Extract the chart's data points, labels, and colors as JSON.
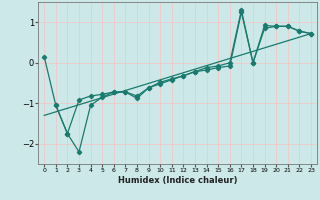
{
  "xlabel": "Humidex (Indice chaleur)",
  "ylabel": "",
  "bg_color": "#cce8e8",
  "grid_color": "#f0c8c8",
  "line_color": "#1a7a6e",
  "xlim": [
    -0.5,
    23.5
  ],
  "ylim": [
    -2.5,
    1.5
  ],
  "xticks": [
    0,
    1,
    2,
    3,
    4,
    5,
    6,
    7,
    8,
    9,
    10,
    11,
    12,
    13,
    14,
    15,
    16,
    17,
    18,
    19,
    20,
    21,
    22,
    23
  ],
  "yticks": [
    -2,
    -1,
    0,
    1
  ],
  "line1_x": [
    0,
    1,
    2,
    3,
    4,
    5,
    6,
    7,
    8,
    9,
    10,
    11,
    12,
    13,
    14,
    15,
    16,
    17,
    18,
    19,
    20,
    21,
    22,
    23
  ],
  "line1_y": [
    0.15,
    -1.05,
    -1.75,
    -0.92,
    -0.82,
    -0.78,
    -0.72,
    -0.72,
    -0.88,
    -0.62,
    -0.52,
    -0.42,
    -0.32,
    -0.22,
    -0.18,
    -0.12,
    -0.08,
    1.25,
    0.0,
    0.92,
    0.9,
    0.9,
    0.78,
    0.72
  ],
  "line2_x": [
    1,
    2,
    3,
    4,
    5,
    6,
    7,
    8,
    9,
    10,
    11,
    12,
    13,
    14,
    15,
    16,
    17,
    18,
    19,
    20,
    21,
    22,
    23
  ],
  "line2_y": [
    -1.05,
    -1.75,
    -2.2,
    -1.05,
    -0.85,
    -0.72,
    -0.72,
    -0.82,
    -0.62,
    -0.48,
    -0.4,
    -0.32,
    -0.22,
    -0.12,
    -0.08,
    0.0,
    1.3,
    0.0,
    0.85,
    0.9,
    0.9,
    0.78,
    0.72
  ],
  "line3_x": [
    0,
    23
  ],
  "line3_y": [
    -1.3,
    0.72
  ]
}
